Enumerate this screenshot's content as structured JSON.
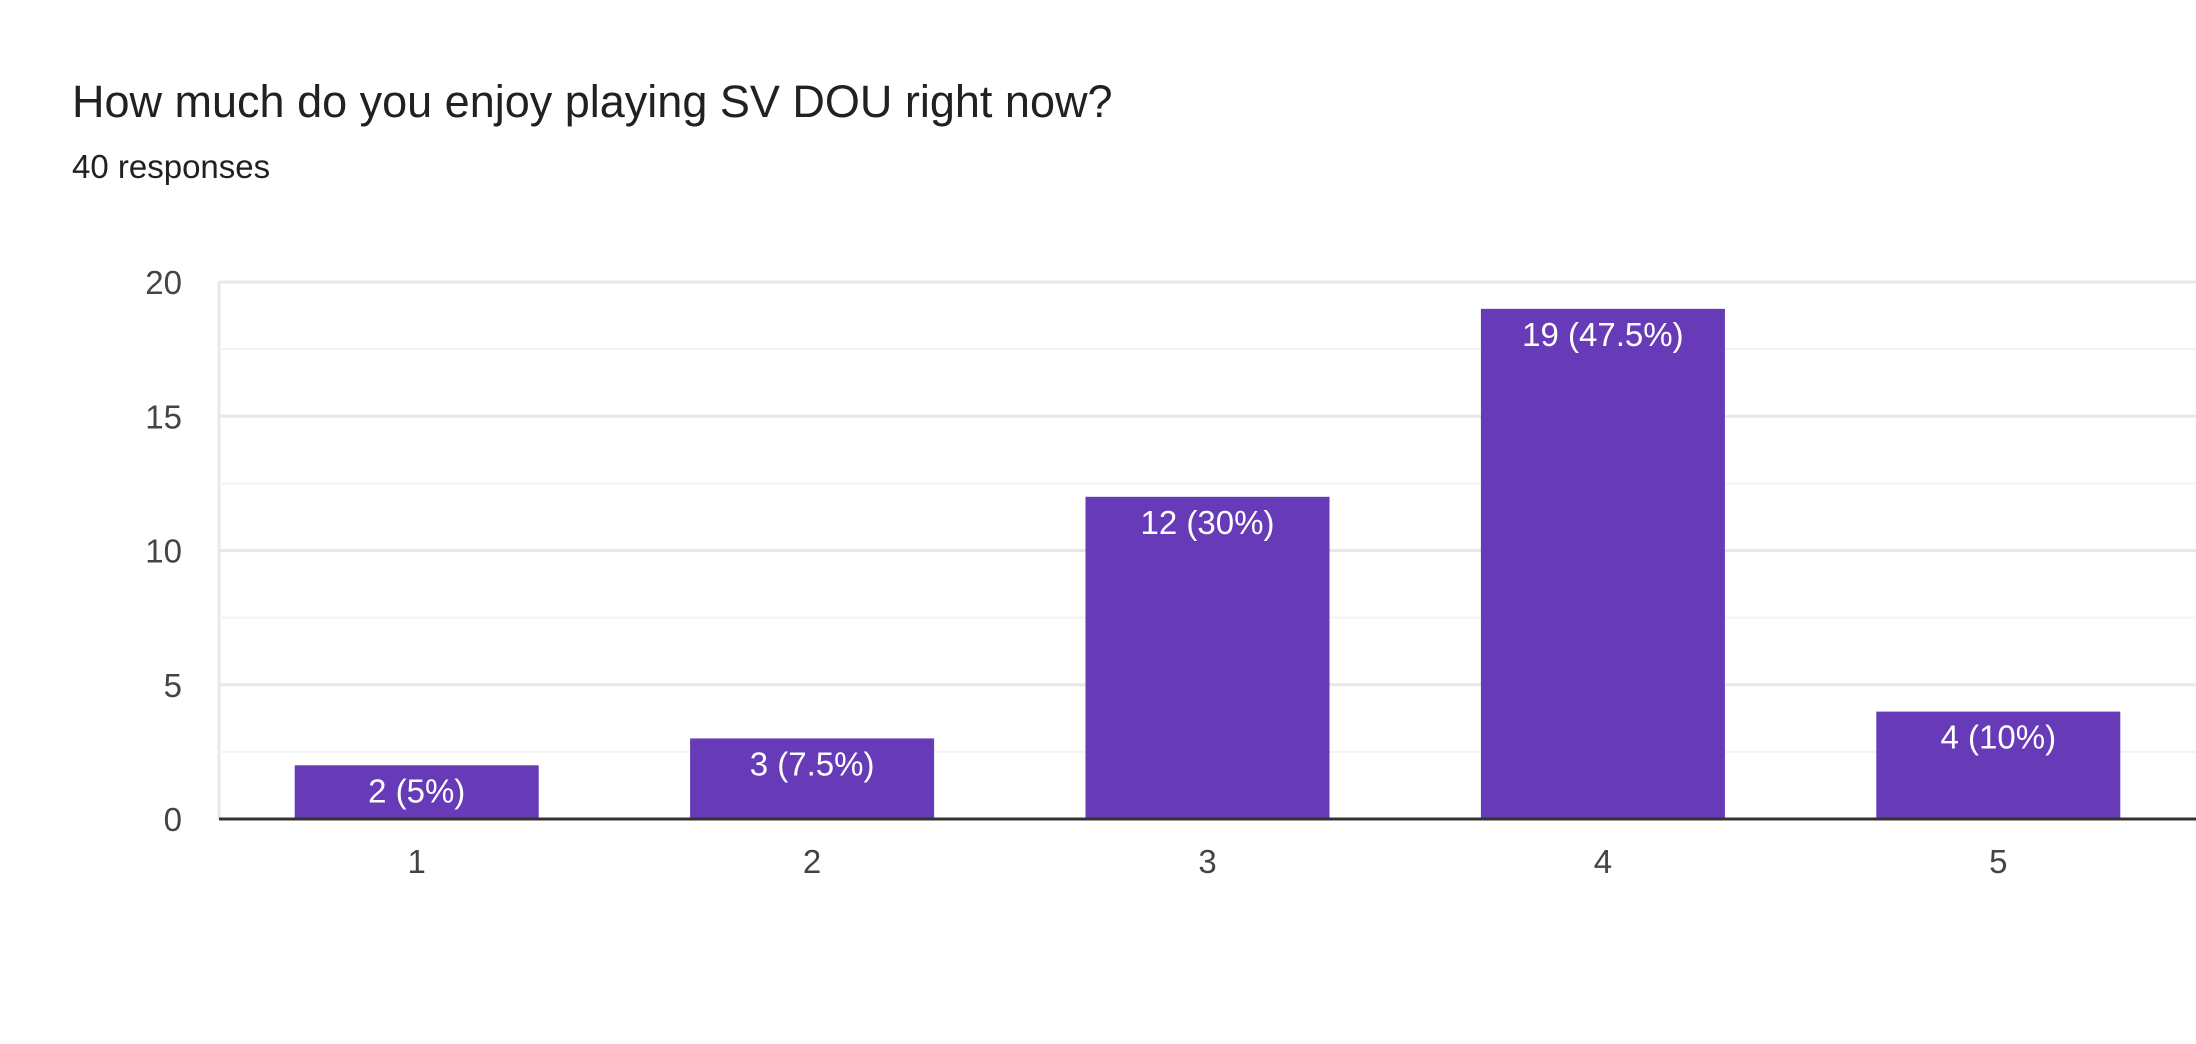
{
  "question": {
    "title": "How much do you enjoy playing SV DOU right now?",
    "responses": "40 responses"
  },
  "colors": {
    "bar": "#673ab7",
    "grid_major": "#e8e8e8",
    "grid_minor": "#f3f3f3",
    "axis": "#333333",
    "bar_label": "#ffffff",
    "tick": "#444444"
  },
  "chart_data": {
    "type": "bar",
    "title": "",
    "xlabel": "",
    "ylabel": "",
    "categories": [
      "1",
      "2",
      "3",
      "4",
      "5"
    ],
    "values": [
      2,
      3,
      12,
      19,
      4
    ],
    "data_labels": [
      "2 (5%)",
      "3 (7.5%)",
      "12 (30%)",
      "19 (47.5%)",
      "4 (10%)"
    ],
    "ylim": [
      0,
      20
    ],
    "yticks": [
      0,
      5,
      10,
      15,
      20
    ],
    "grid": true,
    "legend": "none"
  }
}
